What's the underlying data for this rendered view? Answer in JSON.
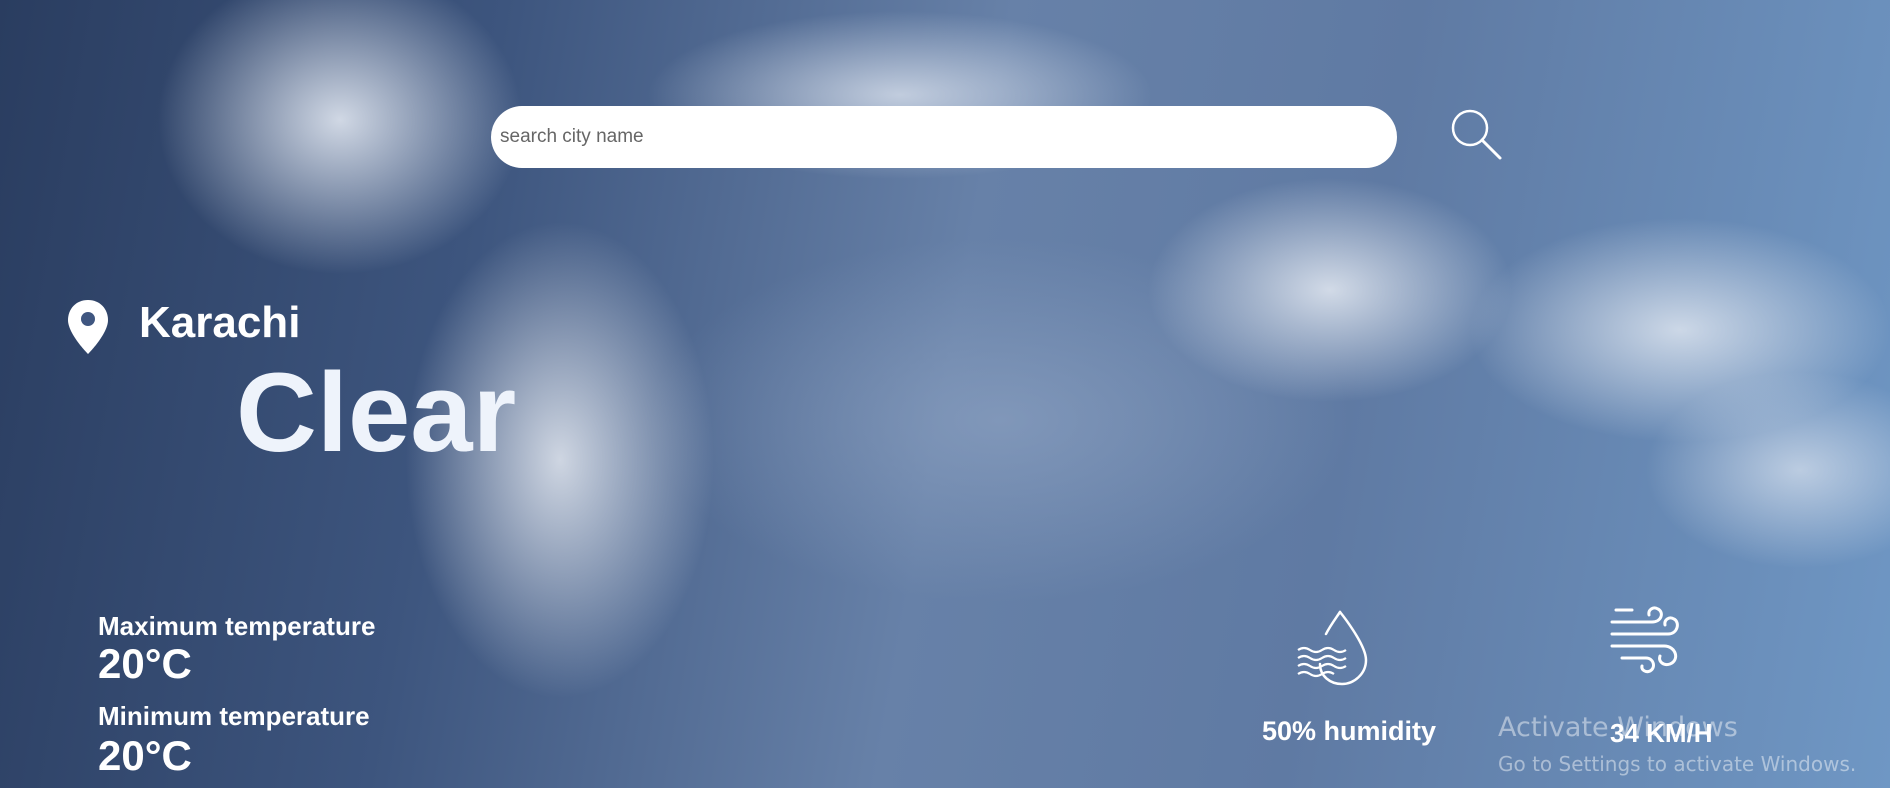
{
  "search": {
    "placeholder": "search city name",
    "value": "",
    "button_icon": "search-icon"
  },
  "location": {
    "icon": "location-pin-icon",
    "city": "Karachi",
    "condition": "Clear"
  },
  "temperature": {
    "max_label": "Maximum temperature",
    "max_value": "20°C",
    "min_label": "Minimum temperature",
    "min_value": "20°C"
  },
  "humidity": {
    "icon": "humidity-drop-icon",
    "text": "50% humidity"
  },
  "wind": {
    "icon": "wind-icon",
    "text": "34 KM/H"
  },
  "watermark": {
    "title": "Activate Windows",
    "subtitle": "Go to Settings to activate Windows."
  },
  "colors": {
    "text": "#ffffff",
    "search_bg": "#ffffff",
    "sky_dark": "#2a3d60",
    "sky_light": "#6f97c4"
  }
}
